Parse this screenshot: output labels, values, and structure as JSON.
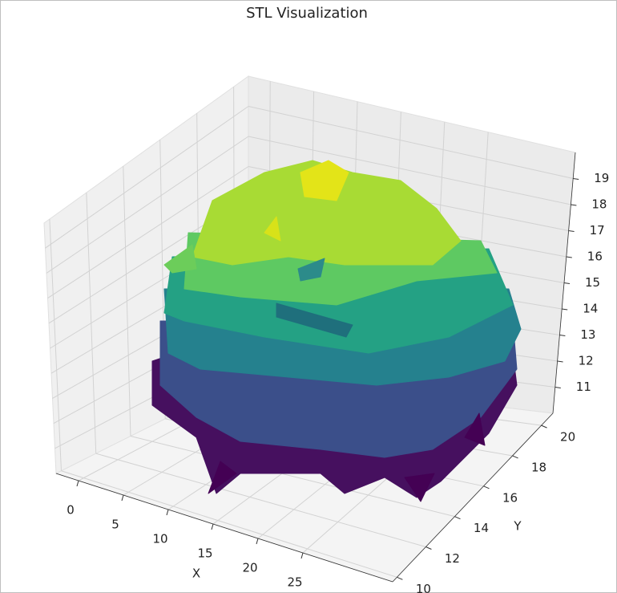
{
  "chart_data": {
    "type": "surface3d",
    "title": "STL Visualization",
    "xlabel": "X",
    "ylabel": "Y",
    "xlim": [
      -2.5,
      35
    ],
    "ylim": [
      9.7,
      20.8
    ],
    "zlim": [
      10,
      20
    ],
    "xticks": [
      0,
      5,
      10,
      15,
      20,
      25
    ],
    "yticks": [
      10,
      12,
      14,
      16,
      18,
      20
    ],
    "zticks": [
      11,
      12,
      13,
      14,
      15,
      16,
      17,
      18,
      19
    ],
    "grid": true
  }
}
